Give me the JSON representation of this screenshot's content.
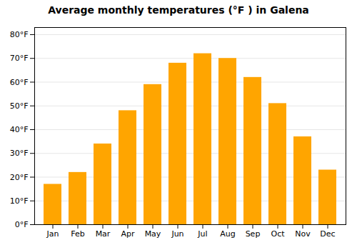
{
  "chart_data": {
    "type": "bar",
    "title": "Average monthly temperatures (°F ) in Galena",
    "categories": [
      "Jan",
      "Feb",
      "Mar",
      "Apr",
      "May",
      "Jun",
      "Jul",
      "Aug",
      "Sep",
      "Oct",
      "Nov",
      "Dec"
    ],
    "values": [
      17,
      22,
      34,
      48,
      59,
      68,
      72,
      70,
      62,
      51,
      37,
      23
    ],
    "color": "#FFA500",
    "ylim": [
      0,
      83
    ],
    "yticks": [
      {
        "value": 0,
        "label": "0°F"
      },
      {
        "value": 10,
        "label": "10°F"
      },
      {
        "value": 20,
        "label": "20°F"
      },
      {
        "value": 30,
        "label": "30°F"
      },
      {
        "value": 40,
        "label": "40°F"
      },
      {
        "value": 50,
        "label": "50°F"
      },
      {
        "value": 60,
        "label": "60°F"
      },
      {
        "value": 70,
        "label": "70°F"
      },
      {
        "value": 80,
        "label": "80°F"
      }
    ],
    "grid": true
  }
}
